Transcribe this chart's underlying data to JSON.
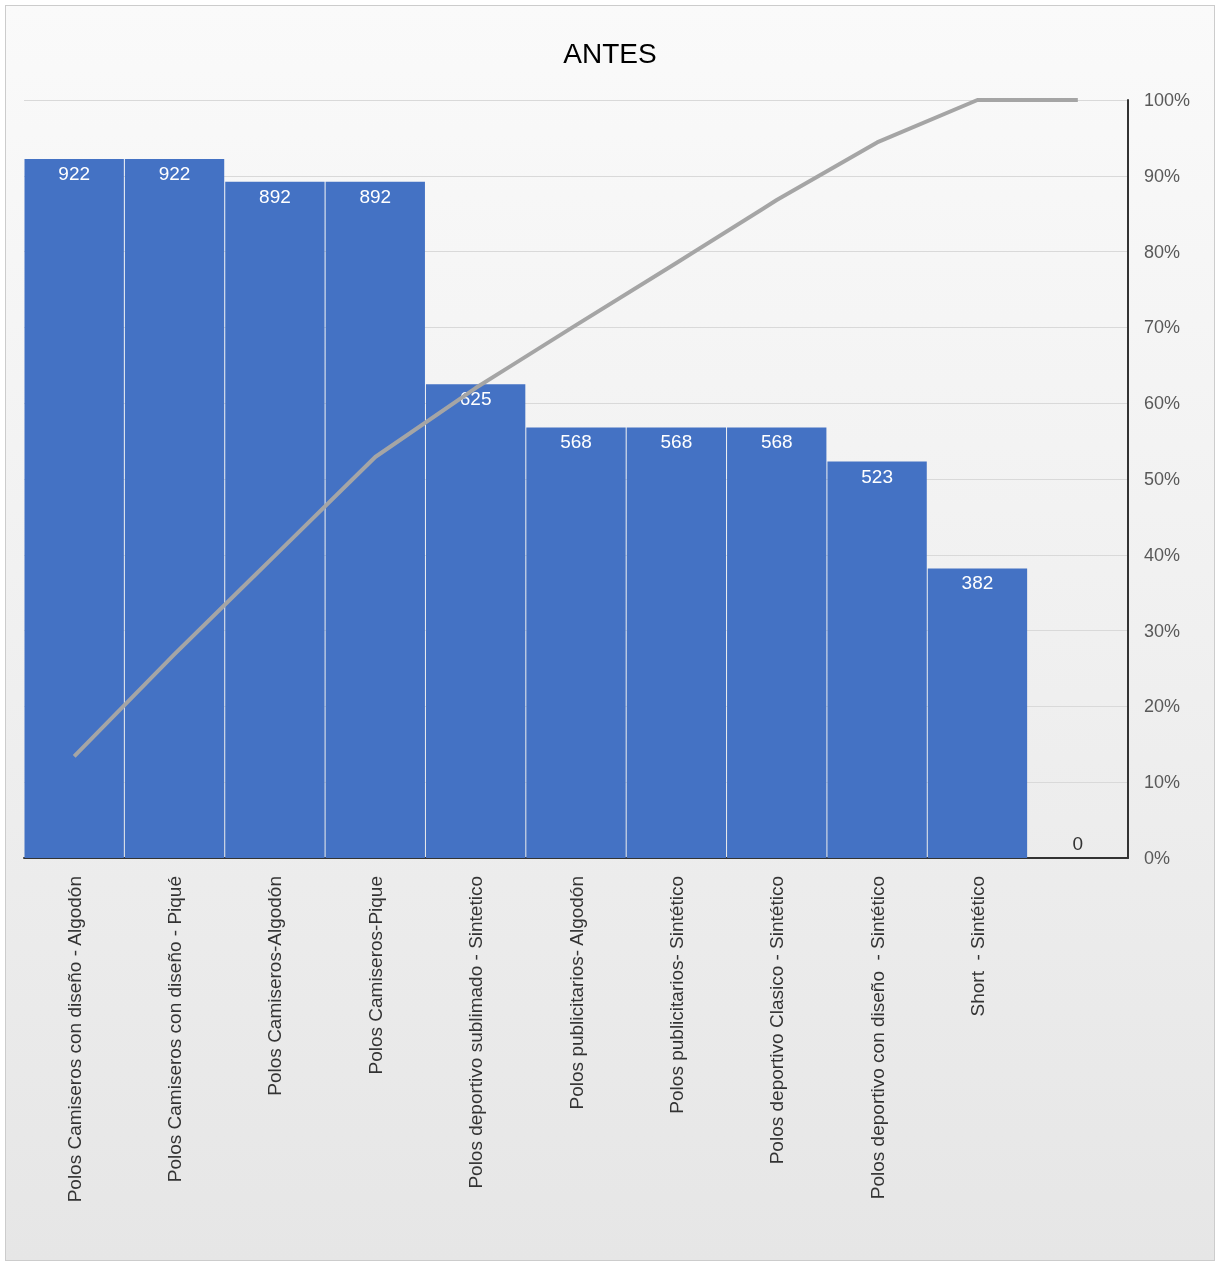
{
  "chart_data": {
    "type": "bar",
    "title": "ANTES",
    "categories": [
      "Polos Camiseros con diseño - Algodón",
      "Polos Camiseros con diseño - Piqué",
      "Polos Camiseros-Algodón",
      "Polos Camiseros-Pique",
      "Polos deportivo sublimado - Sintetico",
      "Polos publicitarios- Algodón",
      "Polos publicitarios- Sintético",
      "Polos deportivo Clasico - Sintético",
      "Polos deportivo con diseño  - Sintético",
      "Short  - Sintético",
      null
    ],
    "series": [
      {
        "axis": "y2",
        "color": "#4472c4",
        "values": [
          922,
          922,
          892,
          892,
          625,
          568,
          568,
          568,
          523,
          382,
          0
        ],
        "value_labels": [
          "922",
          "922",
          "892",
          "892",
          "625",
          "568",
          "568",
          "568",
          "523",
          "382",
          "0"
        ]
      },
      {
        "type": "line",
        "color": "#a5a5a5",
        "values": [
          13.4,
          26.9,
          39.9,
          52.9,
          62.0,
          70.3,
          78.5,
          86.8,
          94.4,
          100,
          100
        ]
      }
    ],
    "ylim": [
      0,
      100
    ],
    "yticks": [
      {
        "value": 0,
        "label": "0%"
      },
      {
        "value": 10,
        "label": "10%"
      },
      {
        "value": 20,
        "label": "20%"
      },
      {
        "value": 30,
        "label": "30%"
      },
      {
        "value": 40,
        "label": "40%"
      },
      {
        "value": 50,
        "label": "50%"
      },
      {
        "value": 60,
        "label": "60%"
      },
      {
        "value": 70,
        "label": "70%"
      },
      {
        "value": 80,
        "label": "80%"
      },
      {
        "value": 90,
        "label": "90%"
      },
      {
        "value": 100,
        "label": "100%"
      }
    ],
    "grid": "y",
    "marker": "none"
  }
}
